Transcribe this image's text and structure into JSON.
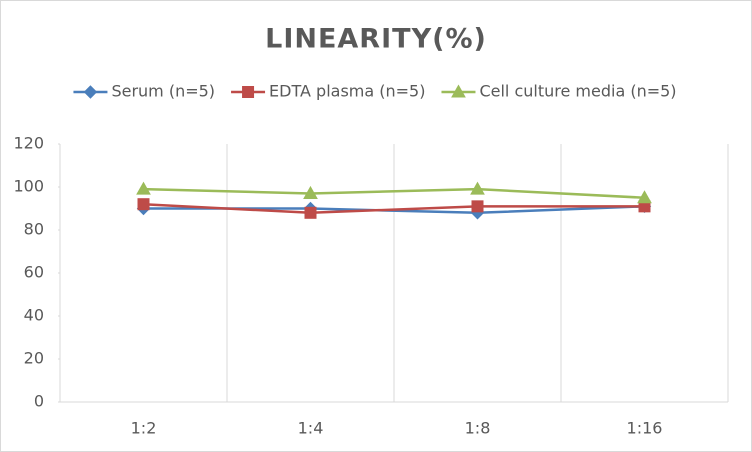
{
  "chart_data": {
    "type": "line",
    "title": "LINEARITY(%)",
    "categories": [
      "1:2",
      "1:4",
      "1:8",
      "1:16"
    ],
    "series": [
      {
        "name": "Serum (n=5)",
        "color": "#4a7ebb",
        "marker": "diamond",
        "values": [
          90,
          90,
          88,
          91
        ]
      },
      {
        "name": "EDTA plasma (n=5)",
        "color": "#be4b48",
        "marker": "square",
        "values": [
          92,
          88,
          91,
          91
        ]
      },
      {
        "name": "Cell culture media (n=5)",
        "color": "#9bbb59",
        "marker": "triangle",
        "values": [
          99,
          97,
          99,
          95
        ]
      }
    ],
    "ylim": [
      0,
      120
    ],
    "yticks": [
      0,
      20,
      40,
      60,
      80,
      100,
      120
    ],
    "grid": true,
    "legend": "top"
  }
}
